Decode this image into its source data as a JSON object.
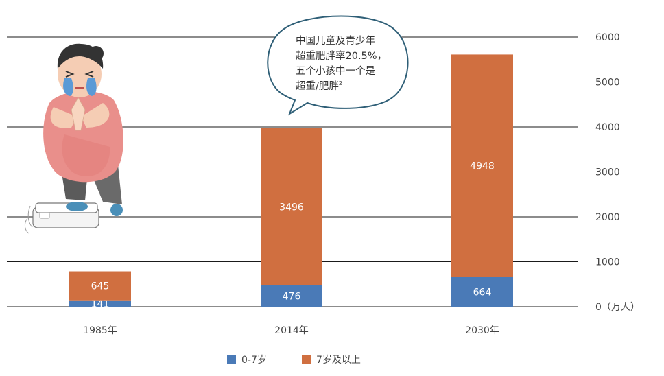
{
  "chart_data": {
    "type": "bar",
    "stacked": true,
    "categories": [
      "1985年",
      "2014年",
      "2030年"
    ],
    "series": [
      {
        "name": "0-7岁",
        "values": [
          141,
          476,
          664
        ],
        "color": "#4a7ab7"
      },
      {
        "name": "7岁及以上",
        "values": [
          645,
          3496,
          4948
        ],
        "color": "#d06f40"
      }
    ],
    "yticks": [
      0,
      1000,
      2000,
      3000,
      4000,
      5000,
      6000
    ],
    "yunit": "（万人）",
    "ylim": [
      0,
      6000
    ],
    "grid": true,
    "y_axis_side": "right",
    "legend_position": "bottom"
  },
  "callout": {
    "lines": [
      "中国儿童及青少年",
      "超重肥胖率20.5%，",
      "五个小孩中一个是",
      "超重/肥胖"
    ],
    "superscript": "2"
  },
  "illustration": {
    "icon": "crying-overweight-child-on-scale-icon"
  }
}
